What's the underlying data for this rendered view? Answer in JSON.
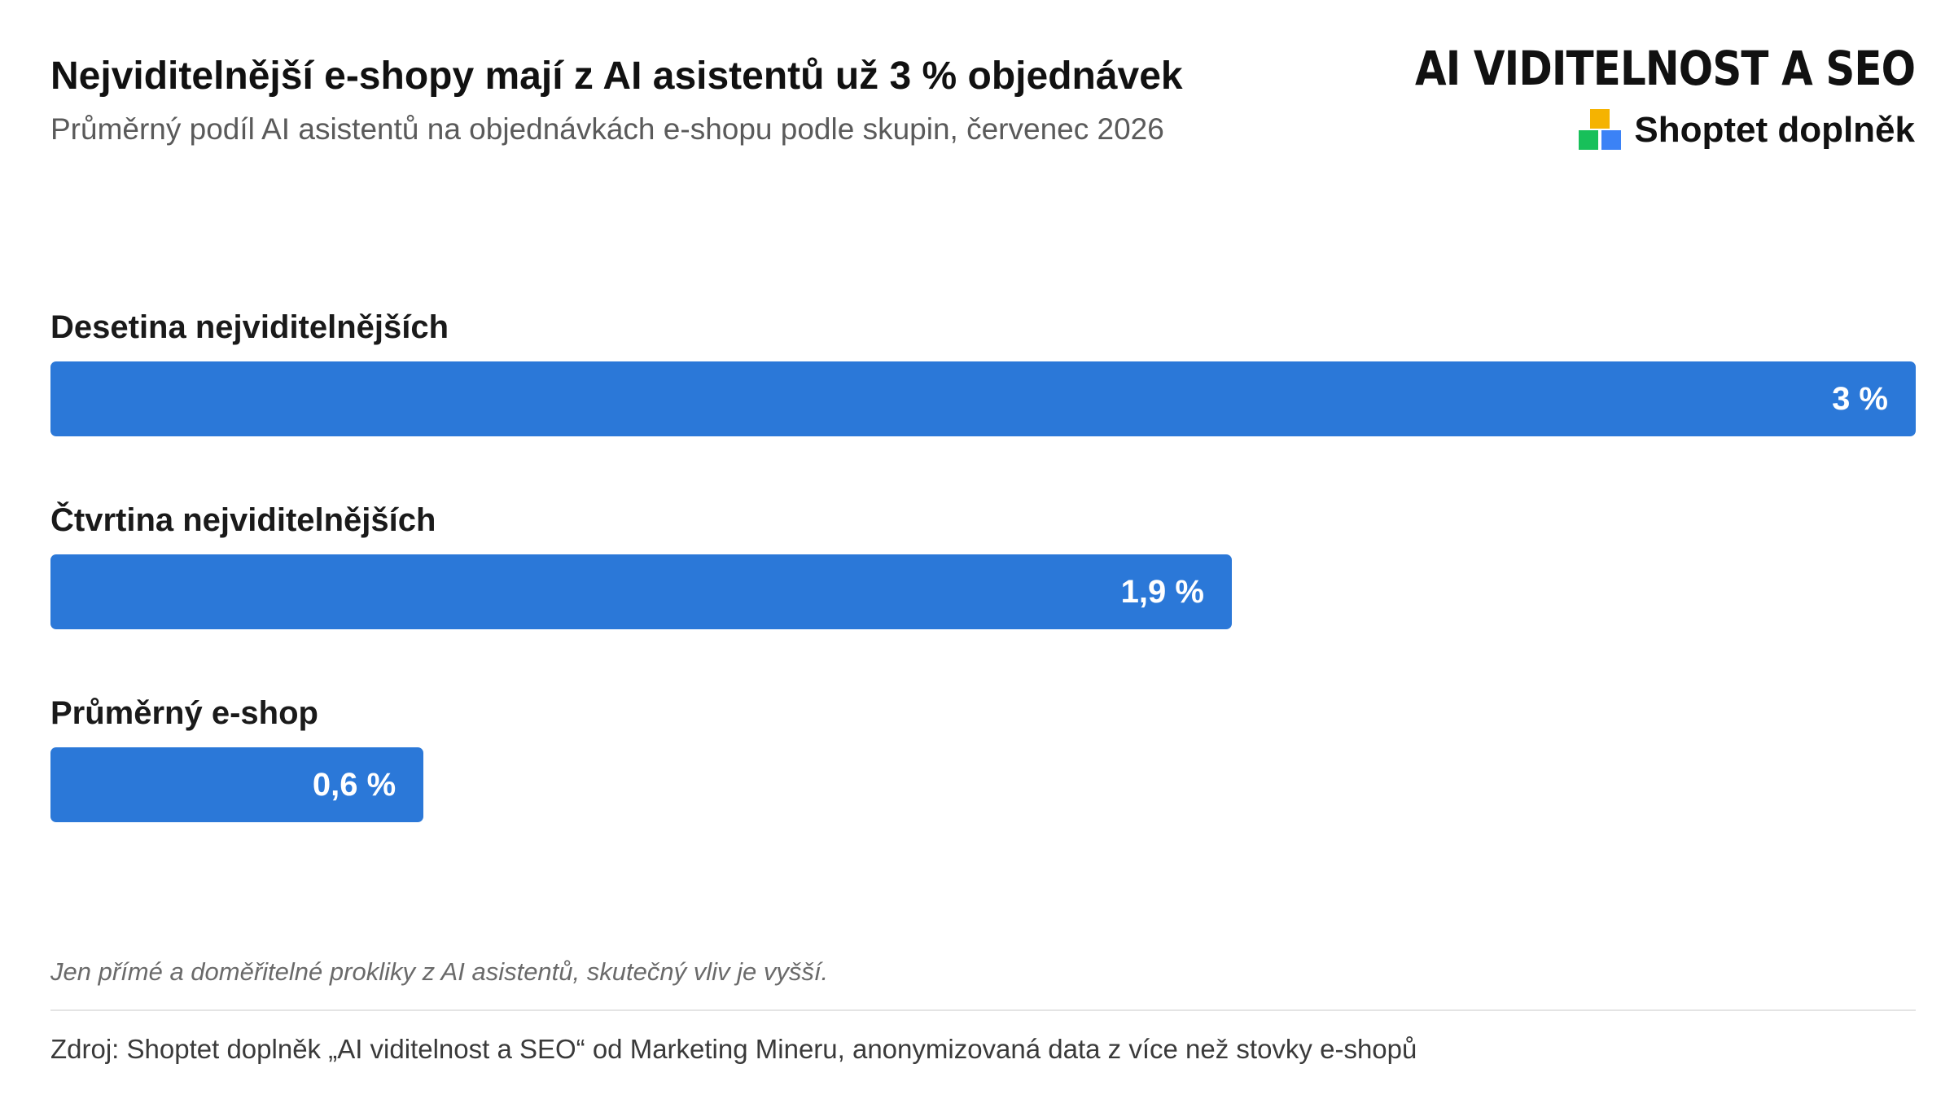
{
  "header": {
    "title": "Nejviditelnější e-shopy mají z AI asistentů už 3 % objednávek",
    "subtitle": "Průměrný podíl AI asistentů na objednávkách e-shopu podle skupin, červenec 2026"
  },
  "brand": {
    "name": "AI VIDITELNOST A SEO",
    "sub_label": "Shoptet doplněk",
    "logo_colors": [
      "#f5b301",
      "#18c05a",
      "#3b82f6"
    ]
  },
  "chart_data": {
    "type": "bar",
    "orientation": "horizontal",
    "categories": [
      "Desetina nejviditelnějších",
      "Čtvrtina nejviditelnějších",
      "Průměrný e-shop"
    ],
    "values": [
      3,
      1.9,
      0.6
    ],
    "value_labels": [
      "3 %",
      "1,9 %",
      "0,6 %"
    ],
    "title": "Nejviditelnější e-shopy mají z AI asistentů už 3 % objednávek",
    "subtitle": "Průměrný podíl AI asistentů na objednávkách e-shopu podle skupin, červenec 2026",
    "unit": "%",
    "xlim": [
      0,
      3
    ],
    "bar_color": "#2b78d8",
    "grid": false,
    "legend": "none"
  },
  "footer": {
    "note": "Jen přímé a doměřitelné prokliky z AI asistentů, skutečný vliv je vyšší.",
    "source": "Zdroj: Shoptet doplněk „AI viditelnost a SEO“ od Marketing Mineru, anonymizovaná data z více než stovky e-shopů"
  }
}
